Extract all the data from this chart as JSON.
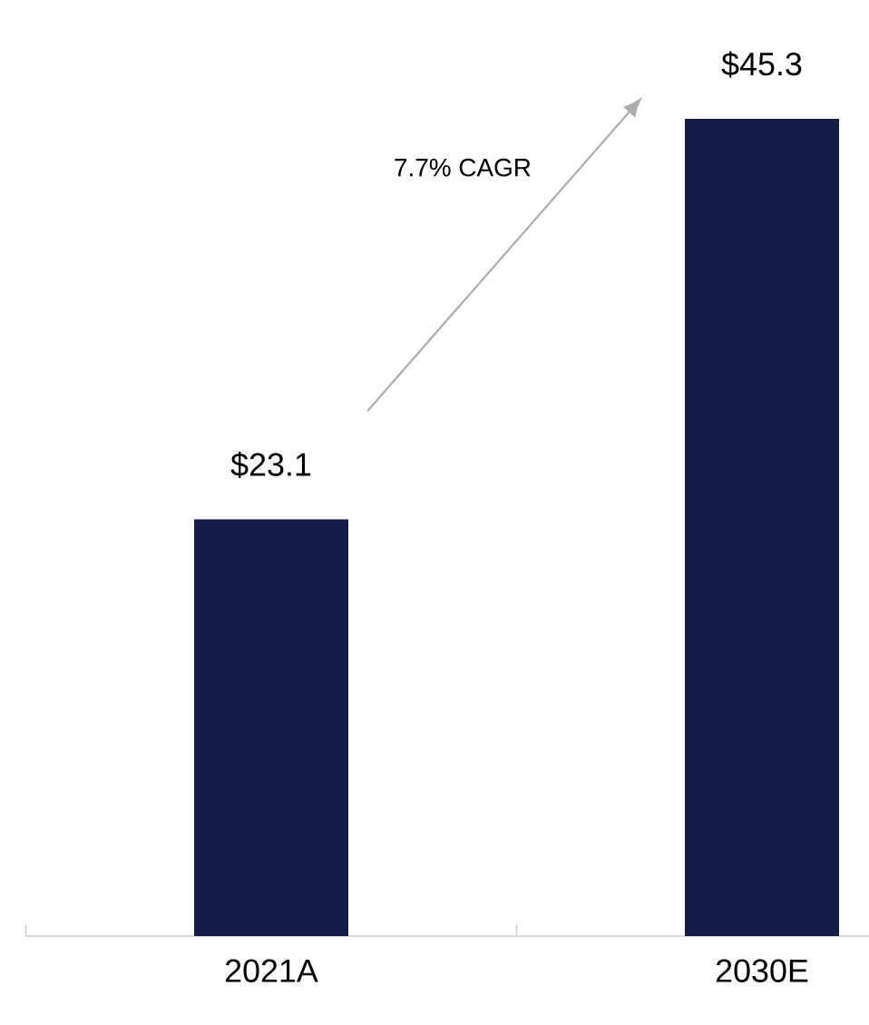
{
  "chart_data": {
    "type": "bar",
    "categories": [
      "2021A",
      "2030E"
    ],
    "values": [
      23.1,
      45.3
    ],
    "value_labels": [
      "$23.1",
      "$45.3"
    ],
    "color": "#161d4a",
    "annotations": [
      "7.7% CAGR"
    ]
  }
}
